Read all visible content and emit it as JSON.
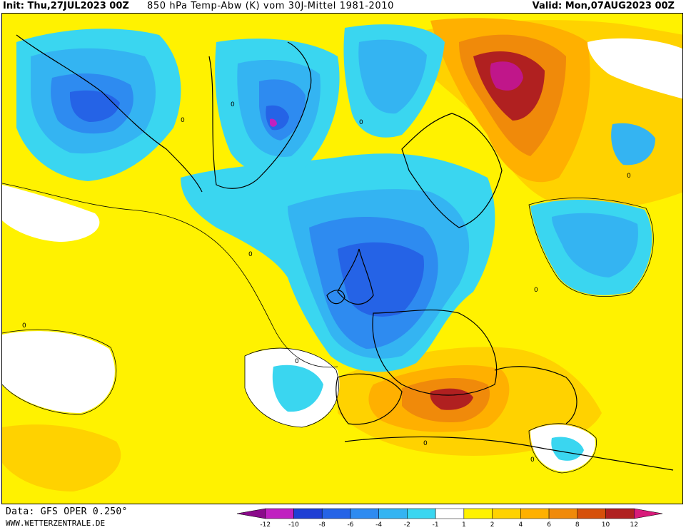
{
  "header": {
    "init": "Init: Thu,27JUL2023 00Z",
    "title": "850 hPa Temp-Abw (K) vom 30J-Mittel 1981-2010",
    "valid": "Valid: Mon,07AUG2023 00Z"
  },
  "footer": {
    "data_source": "Data: GFS OPER 0.250°",
    "website": "WWW.WETTERZENTRALE.DE"
  },
  "map": {
    "variable": "850 hPa temperature anomaly",
    "units": "K",
    "contour_labels": [
      "0",
      "0",
      "0",
      "0",
      "0",
      "0",
      "0",
      "0",
      "0",
      "0"
    ]
  },
  "legend": {
    "ticks": [
      "-12",
      "-10",
      "-8",
      "-6",
      "-4",
      "-2",
      "-1",
      "1",
      "2",
      "4",
      "6",
      "8",
      "10",
      "12"
    ],
    "colors": [
      "#8a0a8a",
      "#c020c0",
      "#1f3fd4",
      "#2563e6",
      "#2e8bf0",
      "#34b4f2",
      "#3ad6f0",
      "#ffffff",
      "#fff200",
      "#ffd200",
      "#ffb000",
      "#f08a0a",
      "#d6500a",
      "#b02020",
      "#d81a7a"
    ]
  },
  "colors": {
    "strong_cold": "#1f3fd4",
    "cold": "#2e8bf0",
    "cool": "#3ad6f0",
    "neutral": "#ffffff",
    "warm": "#fff200",
    "warmer": "#ffd200",
    "hot": "#ffb000",
    "very_hot": "#f08a0a",
    "extreme": "#b02020",
    "extreme_peak": "#c0168a"
  }
}
